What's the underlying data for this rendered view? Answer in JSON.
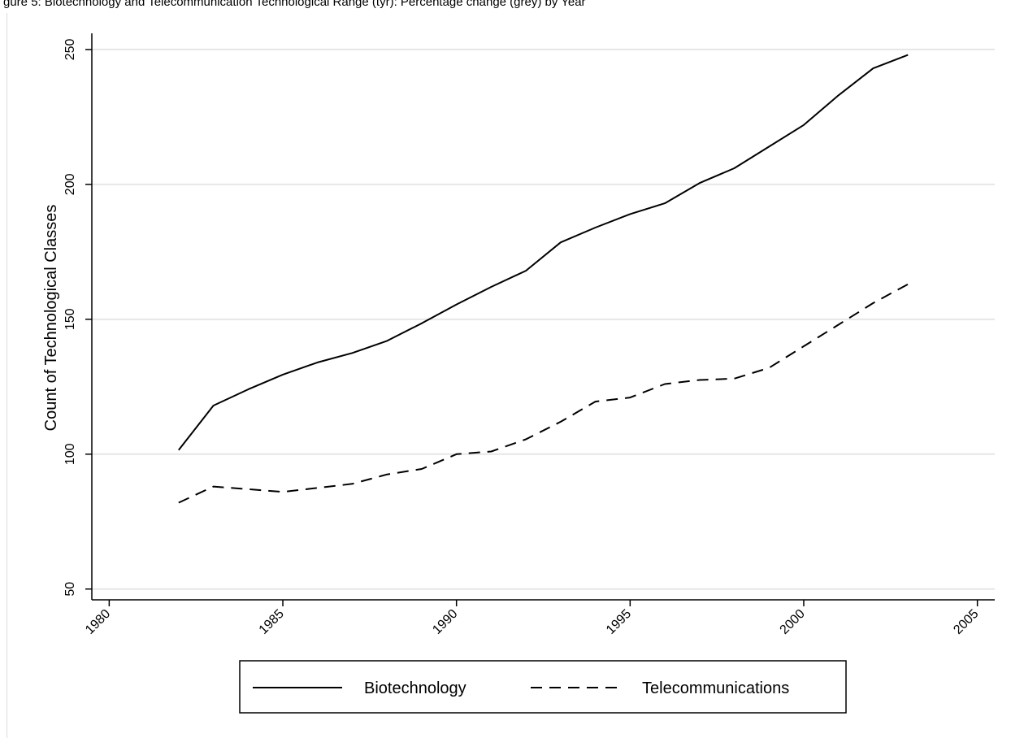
{
  "caption": "gure  5: Biotechnology  and  Telecommunication  Technological  Range  (tyr):   Percentage  change  (grey)  by  Year",
  "chart_data": {
    "type": "line",
    "title": "",
    "xlabel": "",
    "ylabel": "Count of Technological Classes",
    "xlim": [
      1979.5,
      2005.5
    ],
    "ylim": [
      46,
      256
    ],
    "x_ticks": [
      1980,
      1985,
      1990,
      1995,
      2000,
      2005
    ],
    "y_ticks": [
      50,
      100,
      150,
      200,
      250
    ],
    "grid": "horizontal",
    "legend_position": "bottom",
    "x": [
      1982,
      1983,
      1984,
      1985,
      1986,
      1987,
      1988,
      1989,
      1990,
      1991,
      1992,
      1993,
      1994,
      1995,
      1996,
      1997,
      1998,
      1999,
      2000,
      2001,
      2002,
      2003
    ],
    "series": [
      {
        "name": "Biotechnology",
        "style": "solid",
        "color": "#000000",
        "values": [
          101.5,
          118,
          124,
          129.5,
          134,
          137.5,
          142,
          148.5,
          155.5,
          162,
          168,
          178.5,
          184,
          189,
          193,
          200.5,
          206,
          214,
          222,
          233,
          243,
          248
        ]
      },
      {
        "name": "Telecommunications",
        "style": "dashed",
        "color": "#000000",
        "values": [
          82,
          88,
          87,
          86,
          87.5,
          89,
          92.5,
          94.5,
          100,
          101,
          105.5,
          112,
          119.5,
          121,
          126,
          127.5,
          128,
          132,
          140,
          148,
          156,
          163
        ]
      }
    ]
  },
  "colors": {
    "grid": "#e6e6e6",
    "axis": "#000000",
    "background": "#ffffff"
  }
}
